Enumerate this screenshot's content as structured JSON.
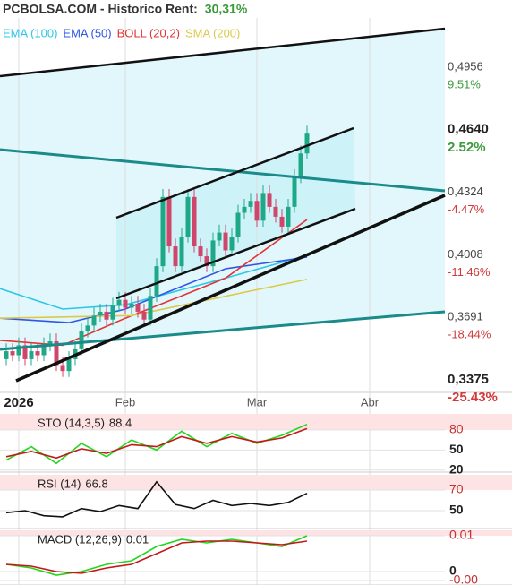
{
  "header": {
    "title": "PCBOLSA.COM - Historico  Rent:",
    "rent": "30,31%"
  },
  "chart_data": [
    {
      "type": "candlestick",
      "x": [
        1,
        2,
        3,
        4,
        5,
        6,
        7,
        8,
        9,
        10,
        11,
        12,
        13,
        14,
        15,
        16,
        17,
        18,
        19,
        20,
        21,
        22,
        23,
        24,
        25,
        26,
        27,
        28,
        29,
        30,
        31,
        32,
        33,
        34,
        35,
        36,
        37,
        38,
        39,
        40,
        41,
        42,
        43,
        44,
        45,
        46,
        47,
        48,
        49
      ],
      "open": [
        0.348,
        0.352,
        0.35,
        0.355,
        0.348,
        0.352,
        0.35,
        0.355,
        0.357,
        0.345,
        0.342,
        0.348,
        0.353,
        0.362,
        0.365,
        0.37,
        0.372,
        0.368,
        0.375,
        0.378,
        0.374,
        0.376,
        0.372,
        0.368,
        0.38,
        0.395,
        0.43,
        0.405,
        0.395,
        0.41,
        0.43,
        0.405,
        0.4,
        0.395,
        0.408,
        0.412,
        0.403,
        0.41,
        0.422,
        0.425,
        0.428,
        0.418,
        0.432,
        0.425,
        0.42,
        0.415,
        0.425,
        0.44,
        0.452
      ],
      "high": [
        0.356,
        0.356,
        0.359,
        0.359,
        0.356,
        0.356,
        0.359,
        0.361,
        0.361,
        0.349,
        0.352,
        0.357,
        0.366,
        0.369,
        0.374,
        0.376,
        0.376,
        0.379,
        0.382,
        0.382,
        0.38,
        0.38,
        0.376,
        0.384,
        0.399,
        0.434,
        0.434,
        0.409,
        0.414,
        0.434,
        0.434,
        0.409,
        0.404,
        0.412,
        0.416,
        0.416,
        0.414,
        0.426,
        0.429,
        0.432,
        0.432,
        0.436,
        0.436,
        0.429,
        0.424,
        0.429,
        0.444,
        0.456,
        0.466
      ],
      "low": [
        0.345,
        0.347,
        0.347,
        0.345,
        0.345,
        0.347,
        0.347,
        0.352,
        0.342,
        0.339,
        0.339,
        0.345,
        0.35,
        0.359,
        0.362,
        0.367,
        0.365,
        0.365,
        0.372,
        0.371,
        0.371,
        0.369,
        0.365,
        0.365,
        0.377,
        0.392,
        0.402,
        0.392,
        0.392,
        0.407,
        0.402,
        0.397,
        0.392,
        0.392,
        0.405,
        0.4,
        0.4,
        0.407,
        0.419,
        0.422,
        0.415,
        0.415,
        0.422,
        0.417,
        0.412,
        0.412,
        0.422,
        0.437,
        0.449
      ],
      "close": [
        0.352,
        0.35,
        0.355,
        0.348,
        0.352,
        0.35,
        0.355,
        0.357,
        0.345,
        0.342,
        0.348,
        0.353,
        0.362,
        0.365,
        0.37,
        0.372,
        0.368,
        0.375,
        0.378,
        0.374,
        0.376,
        0.372,
        0.368,
        0.38,
        0.395,
        0.43,
        0.405,
        0.395,
        0.41,
        0.43,
        0.405,
        0.4,
        0.395,
        0.408,
        0.412,
        0.403,
        0.41,
        0.422,
        0.425,
        0.428,
        0.418,
        0.432,
        0.425,
        0.42,
        0.415,
        0.425,
        0.44,
        0.452,
        0.462
      ],
      "up_color": "#1fa888",
      "down_color": "#d0456a",
      "series": [
        {
          "name": "EMA (100)",
          "color": "#2cc6e8",
          "x": [
            0,
            10,
            20,
            36,
            49
          ],
          "values": [
            0.3837,
            0.3733,
            0.3755,
            0.389,
            0.4005
          ]
        },
        {
          "name": "EMA (50)",
          "color": "#2f56e6",
          "x": [
            0,
            11,
            20,
            36,
            49
          ],
          "values": [
            0.3687,
            0.3665,
            0.3733,
            0.3937,
            0.3996
          ]
        },
        {
          "name": "BOLL (20,2)",
          "color": "#e23434",
          "x": [
            0,
            10,
            20,
            29,
            36,
            49
          ],
          "values": [
            0.3575,
            0.355,
            0.3687,
            0.38,
            0.389,
            0.4185
          ]
        },
        {
          "name": "SMA (200)",
          "color": "#dcc94a",
          "x": [
            0,
            21,
            49
          ],
          "values": [
            0.3687,
            0.37,
            0.3883
          ]
        }
      ],
      "xlim": [
        0,
        71
      ],
      "xticks": [
        {
          "value": 3,
          "label": "2026"
        },
        {
          "value": 20,
          "label": "Feb"
        },
        {
          "value": 41,
          "label": "Mar"
        },
        {
          "value": 59,
          "label": "Abr"
        }
      ],
      "ylim": [
        0.3312,
        0.5205
      ],
      "yticks": [
        {
          "value": 0.4956,
          "label": "0,4956"
        },
        {
          "value": 0.464,
          "label": "0,4640"
        },
        {
          "value": 0.4324,
          "label": "0,4324"
        },
        {
          "value": 0.4008,
          "label": "0,4008"
        },
        {
          "value": 0.3691,
          "label": "0,3691"
        },
        {
          "value": 0.3375,
          "label": "0,3375"
        }
      ],
      "y2lim": [
        -26.82,
        15.01
      ],
      "y2ticks": [
        {
          "value": 9.51,
          "label": "9.51%"
        },
        {
          "value": 2.52,
          "label": "2.52%"
        },
        {
          "value": -4.47,
          "label": "-4.47%"
        },
        {
          "value": -11.46,
          "label": "-11.46%"
        },
        {
          "value": -18.44,
          "label": "-18.44%"
        },
        {
          "value": -25.43,
          "label": "-25.43%"
        }
      ]
    },
    {
      "type": "line",
      "title": "STO (14,3,5)",
      "series": [
        {
          "color": "#22d61e",
          "x": [
            1,
            5,
            9,
            13,
            17,
            21,
            25,
            29,
            33,
            37,
            41,
            45,
            49
          ],
          "values": [
            35,
            55,
            30,
            60,
            40,
            65,
            50,
            78,
            55,
            75,
            60,
            72,
            88.4
          ]
        },
        {
          "color": "#c21818",
          "x": [
            1,
            5,
            9,
            13,
            17,
            21,
            25,
            29,
            33,
            37,
            41,
            45,
            49
          ],
          "values": [
            40,
            48,
            38,
            52,
            45,
            58,
            55,
            70,
            60,
            70,
            62,
            68,
            82
          ]
        }
      ],
      "xlim": [
        0,
        71
      ],
      "ylim": [
        17,
        104
      ],
      "yticks": [
        80,
        50,
        20
      ]
    },
    {
      "type": "line",
      "title": "RSI (14)",
      "series": [
        {
          "color": "#111111",
          "x": [
            1,
            4,
            7,
            10,
            13,
            16,
            19,
            22,
            25,
            28,
            31,
            34,
            37,
            40,
            43,
            46,
            49
          ],
          "values": [
            48,
            50,
            45,
            44,
            52,
            49,
            55,
            52,
            78,
            56,
            52,
            60,
            55,
            57,
            55,
            58,
            66.8
          ]
        }
      ],
      "xlim": [
        0,
        71
      ],
      "ylim": [
        32.6,
        84.8
      ],
      "yticks": [
        70,
        50
      ]
    },
    {
      "type": "line",
      "title": "MACD (12,26,9)",
      "series": [
        {
          "color": "#22d61e",
          "x": [
            1,
            5,
            9,
            13,
            17,
            21,
            25,
            29,
            33,
            37,
            41,
            45,
            49
          ],
          "values": [
            0.002,
            0.001,
            -0.001,
            0,
            0.002,
            0.003,
            0.007,
            0.009,
            0.008,
            0.009,
            0.008,
            0.007,
            0.01
          ]
        },
        {
          "color": "#c21818",
          "x": [
            1,
            5,
            9,
            13,
            17,
            21,
            25,
            29,
            33,
            37,
            41,
            45,
            49
          ],
          "values": [
            0.002,
            0.0015,
            0,
            -0.0005,
            0.001,
            0.002,
            0.005,
            0.008,
            0.0085,
            0.0085,
            0.008,
            0.0075,
            0.0085
          ]
        }
      ],
      "xlim": [
        0,
        71
      ],
      "ylim": [
        -0.00375,
        0.0115
      ],
      "yticks": [
        0.01,
        0,
        {
          "value": -0.0025,
          "label": "-0.00"
        }
      ]
    }
  ]
}
